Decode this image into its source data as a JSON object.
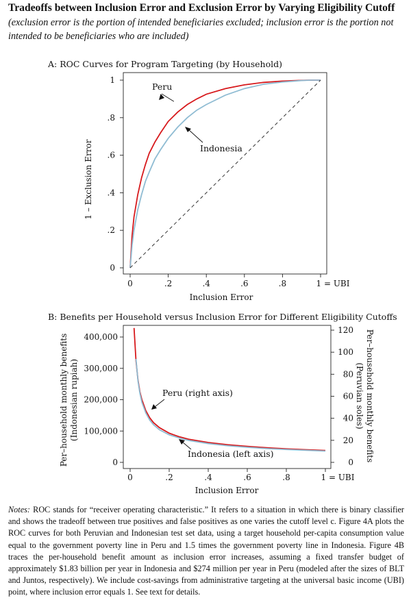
{
  "figure": {
    "title": "Tradeoffs between Inclusion Error and Exclusion Error by Varying Eligibility Cutoff",
    "subtitle": "(exclusion error is the portion of intended beneficiaries excluded; inclusion error is the portion not intended to be beneficiaries who are included)"
  },
  "chart_data": [
    {
      "type": "line",
      "title": "A: ROC Curves for Program Targeting (by Household)",
      "xlabel": "Inclusion Error",
      "ylabel": "1 – Exclusion Error",
      "xlim": [
        0,
        1
      ],
      "ylim": [
        0,
        1
      ],
      "x_ticks": [
        "0",
        ".2",
        ".4",
        ".6",
        ".8",
        "1 = UBI"
      ],
      "y_ticks": [
        "0",
        ".2",
        ".4",
        ".6",
        ".8",
        "1"
      ],
      "grid": false,
      "series": [
        {
          "name": "Peru",
          "color": "#d7191c",
          "x": [
            0,
            0.01,
            0.02,
            0.04,
            0.06,
            0.08,
            0.1,
            0.13,
            0.16,
            0.2,
            0.25,
            0.3,
            0.35,
            0.4,
            0.5,
            0.6,
            0.7,
            0.8,
            0.9,
            0.95,
            1
          ],
          "y": [
            0,
            0.17,
            0.27,
            0.39,
            0.48,
            0.55,
            0.61,
            0.67,
            0.72,
            0.78,
            0.83,
            0.87,
            0.9,
            0.925,
            0.955,
            0.975,
            0.988,
            0.995,
            0.999,
            1,
            1
          ]
        },
        {
          "name": "Indonesia",
          "color": "#8fbcd3",
          "x": [
            0,
            0.01,
            0.02,
            0.04,
            0.06,
            0.08,
            0.1,
            0.13,
            0.16,
            0.2,
            0.25,
            0.3,
            0.35,
            0.4,
            0.5,
            0.6,
            0.7,
            0.8,
            0.9,
            0.95,
            1
          ],
          "y": [
            0,
            0.12,
            0.2,
            0.31,
            0.39,
            0.46,
            0.51,
            0.58,
            0.63,
            0.69,
            0.75,
            0.8,
            0.84,
            0.87,
            0.92,
            0.955,
            0.978,
            0.99,
            0.998,
            1,
            1
          ]
        },
        {
          "name": "",
          "style": "dashed",
          "color": "#333333",
          "x": [
            0,
            1
          ],
          "y": [
            0,
            1
          ]
        }
      ],
      "annotations": [
        {
          "text": "Peru",
          "series": "Peru",
          "points_to": [
            0.28,
            0.85
          ]
        },
        {
          "text": "Indonesia",
          "series": "Indonesia",
          "points_to": [
            0.32,
            0.74
          ]
        }
      ]
    },
    {
      "type": "line",
      "title": "B: Benefits per Household versus Inclusion Error for Different Eligibility Cutoffs",
      "xlabel": "Inclusion Error",
      "ylabel": "Per–household monthly benefits (Indonesian rupiah)",
      "ylabel_lines": [
        "Per–household monthly benefits",
        "(Indonesian rupiah)"
      ],
      "y2label": "Per–household monthly benefits (Peruvian soles)",
      "y2label_lines": [
        "Per–household monthly benefits",
        "(Peruvian soles)"
      ],
      "xlim": [
        0,
        1
      ],
      "ylim": [
        0,
        400000
      ],
      "y2lim": [
        0,
        120
      ],
      "x_ticks": [
        "0",
        ".2",
        ".4",
        ".6",
        ".8",
        "1 = UBI"
      ],
      "y_ticks": [
        "0",
        "100,000",
        "200,000",
        "300,000",
        "400,000"
      ],
      "y2_ticks": [
        "0",
        "20",
        "40",
        "60",
        "80",
        "100",
        "120"
      ],
      "grid": false,
      "series": [
        {
          "name": "Peru (right axis)",
          "axis": "right",
          "color": "#d7191c",
          "x": [
            0.02,
            0.03,
            0.04,
            0.05,
            0.06,
            0.08,
            0.1,
            0.12,
            0.15,
            0.2,
            0.25,
            0.3,
            0.4,
            0.5,
            0.6,
            0.7,
            0.8,
            0.9,
            1
          ],
          "y": [
            122,
            92,
            75,
            64,
            57,
            47,
            40.5,
            36,
            31.5,
            26.5,
            23.3,
            21,
            18,
            16,
            14.5,
            13.3,
            12.3,
            11.5,
            10.8
          ]
        },
        {
          "name": "Indonesia (left axis)",
          "axis": "left",
          "color": "#8fbcd3",
          "x": [
            0.03,
            0.04,
            0.05,
            0.06,
            0.08,
            0.1,
            0.12,
            0.15,
            0.2,
            0.25,
            0.3,
            0.4,
            0.5,
            0.6,
            0.7,
            0.8,
            0.9,
            1
          ],
          "y": [
            330000,
            260000,
            220000,
            192000,
            158000,
            135000,
            120000,
            104000,
            88000,
            78000,
            70000,
            60000,
            53000,
            48000,
            44000,
            41000,
            38500,
            36000
          ]
        }
      ],
      "annotations": [
        {
          "text": "Peru (right axis)",
          "series": "Peru (right axis)",
          "points_to": [
            0.11,
            38
          ]
        },
        {
          "text": "Indonesia (left axis)",
          "series": "Indonesia (left axis)",
          "points_to": [
            0.23,
            80000
          ]
        }
      ]
    }
  ],
  "notes": {
    "lead": "Notes:",
    "text": "ROC stands for “receiver operating characteristic.” It refers to a situation in which there is binary classifier and shows the tradeoff between true positives and false positives as one varies the cutoff level c. Figure 4A plots the ROC curves for both Peruvian and Indonesian test set data, using a target household per-capita consumption value equal to the government poverty line in Peru and 1.5 times the government poverty line in Indonesia. Figure 4B traces the per-household benefit amount as inclusion error increases, assuming a fixed transfer budget of approximately $1.83 billion per year in Indonesia and $274 million per year in Peru (modeled after the sizes of BLT and Juntos, respectively). We include cost-savings from administrative targeting at the universal basic income (UBI) point, where inclusion error equals 1. See text for details."
  }
}
